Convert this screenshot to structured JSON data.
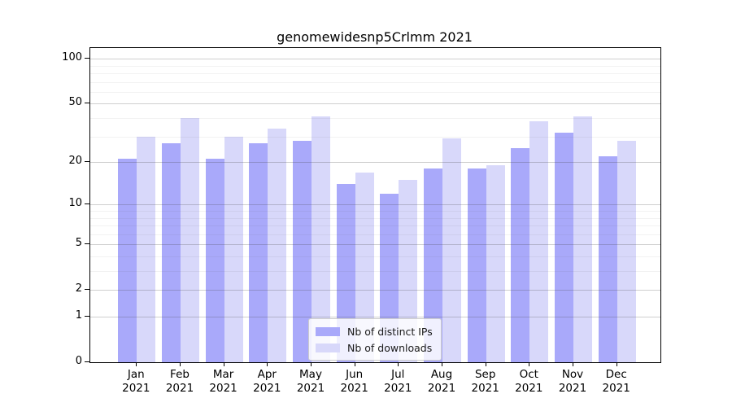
{
  "chart_data": {
    "type": "bar",
    "title": "genomewidesnp5Crlmm 2021",
    "categories": [
      "Jan",
      "Feb",
      "Mar",
      "Apr",
      "May",
      "Jun",
      "Jul",
      "Aug",
      "Sep",
      "Oct",
      "Nov",
      "Dec"
    ],
    "year_label": "2021",
    "series": [
      {
        "name": "Nb of distinct IPs",
        "color": "#a9a9fa",
        "values": [
          21,
          27,
          21,
          27,
          28,
          14,
          12,
          18,
          18,
          25,
          32,
          22
        ]
      },
      {
        "name": "Nb of downloads",
        "color": "#d8d8fa",
        "values": [
          30,
          40,
          30,
          34,
          41,
          17,
          15,
          29,
          19,
          38,
          41,
          28
        ]
      }
    ],
    "yscale": "log10(1+x)",
    "ylim": [
      0,
      118
    ],
    "y_major_ticks": [
      100,
      50,
      20,
      10,
      5,
      2,
      1,
      0
    ],
    "y_minor_ticks": [
      3,
      4,
      6,
      7,
      8,
      9,
      30,
      40,
      60,
      70,
      80,
      90
    ],
    "grid": "major and minor horizontal gridlines, drawn over bars",
    "legend_position": "lower center",
    "axis_color": "#000000",
    "background_color": "#ffffff"
  }
}
